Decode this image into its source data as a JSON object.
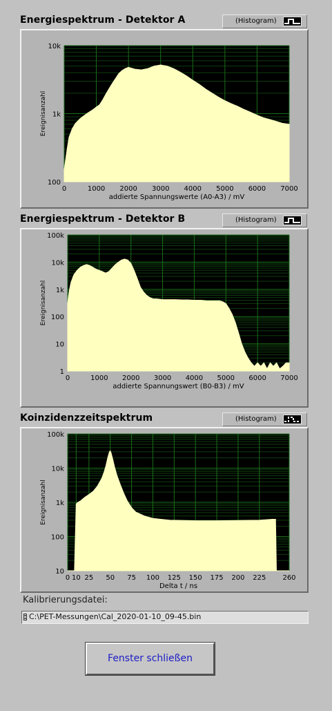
{
  "graphs": [
    {
      "title": "Energiespektrum - Detektor A",
      "legend_label": "(Histogram)",
      "legend_style": "steps-solid",
      "chart_data": {
        "type": "area",
        "xlabel": "addierte Spannungswerte (A0-A3) / mV",
        "ylabel": "Ereignisanzahl",
        "xlim": [
          0,
          7000
        ],
        "ylim": [
          100,
          10000
        ],
        "y_scale": "log",
        "xticks": [
          0,
          1000,
          2000,
          3000,
          4000,
          5000,
          6000,
          7000
        ],
        "xtick_labels": [
          "0",
          "1000",
          "2000",
          "3000",
          "4000",
          "5000",
          "6000",
          "7000"
        ],
        "yticks": [
          100,
          1000,
          10000
        ],
        "ytick_labels": [
          "100",
          "1k",
          "10k"
        ],
        "grid": true,
        "series": [
          {
            "color": "#ffffc0",
            "x": [
              0,
              50,
              100,
              150,
              250,
              350,
              500,
              700,
              900,
              1000,
              1100,
              1200,
              1300,
              1400,
              1500,
              1600,
              1700,
              1800,
              1900,
              2000,
              2200,
              2400,
              2600,
              2800,
              3000,
              3200,
              3400,
              3600,
              3800,
              4000,
              4200,
              4400,
              4600,
              4800,
              5000,
              5200,
              5400,
              5600,
              5800,
              6000,
              6200,
              6400,
              6600,
              6800,
              7000
            ],
            "y": [
              150,
              220,
              320,
              450,
              600,
              720,
              850,
              1000,
              1150,
              1250,
              1350,
              1600,
              1950,
              2350,
              2800,
              3300,
              3900,
              4300,
              4600,
              4800,
              4500,
              4400,
              4600,
              5000,
              5200,
              5000,
              4600,
              4100,
              3600,
              3100,
              2700,
              2300,
              2000,
              1750,
              1550,
              1400,
              1280,
              1150,
              1050,
              950,
              870,
              820,
              770,
              720,
              700
            ]
          }
        ]
      }
    },
    {
      "title": "Energiespektrum - Detektor B",
      "legend_label": "(Histogram)",
      "legend_style": "steps-solid",
      "chart_data": {
        "type": "area",
        "xlabel": "addierte Spannungswert (B0-B3) / mV",
        "ylabel": "Ereignisanzahl",
        "xlim": [
          0,
          7000
        ],
        "ylim": [
          1,
          100000
        ],
        "y_scale": "log",
        "xticks": [
          0,
          1000,
          2000,
          3000,
          4000,
          5000,
          6000,
          7000
        ],
        "xtick_labels": [
          "0",
          "1000",
          "2000",
          "3000",
          "4000",
          "5000",
          "6000",
          "7000"
        ],
        "yticks": [
          1,
          10,
          100,
          1000,
          10000,
          100000
        ],
        "ytick_labels": [
          "1",
          "10",
          "100",
          "1k",
          "10k",
          "100k"
        ],
        "grid": true,
        "series": [
          {
            "color": "#ffffc0",
            "x": [
              0,
              30,
              60,
              100,
              150,
              200,
              300,
              400,
              500,
              600,
              700,
              800,
              900,
              1000,
              1100,
              1200,
              1300,
              1400,
              1500,
              1600,
              1700,
              1800,
              1900,
              2000,
              2100,
              2200,
              2300,
              2400,
              2500,
              2600,
              2700,
              2800,
              3000,
              3200,
              3400,
              3600,
              3800,
              4000,
              4200,
              4400,
              4600,
              4800,
              4900,
              5000,
              5100,
              5200,
              5300,
              5400,
              5500,
              5600,
              5700,
              5800,
              5900,
              6000,
              6100,
              6200,
              6300,
              6400,
              6500,
              6600,
              6700,
              6800,
              6900,
              7000
            ],
            "y": [
              300,
              600,
              1000,
              1700,
              2500,
              3500,
              5000,
              6500,
              7500,
              8200,
              7500,
              6500,
              5500,
              5000,
              4500,
              4000,
              4500,
              6000,
              8000,
              10000,
              12000,
              13000,
              12000,
              9000,
              5000,
              2500,
              1200,
              800,
              600,
              500,
              450,
              450,
              420,
              420,
              420,
              410,
              410,
              400,
              400,
              380,
              380,
              380,
              350,
              300,
              200,
              120,
              60,
              25,
              10,
              5,
              3,
              2,
              1.5,
              2,
              1.5,
              2,
              1.2,
              2,
              1.5,
              2,
              1.2,
              1.5,
              2,
              2
            ]
          }
        ]
      }
    },
    {
      "title": "Koinzidenzzeitspektrum",
      "legend_label": "(Histogram)",
      "legend_style": "steps-dashed",
      "chart_data": {
        "type": "area",
        "xlabel": "Delta t / ns",
        "ylabel": "Ereignisanzahl",
        "xlim": [
          0,
          260
        ],
        "ylim": [
          10,
          100000
        ],
        "y_scale": "log",
        "xticks": [
          0,
          10,
          25,
          50,
          75,
          100,
          125,
          150,
          175,
          200,
          225,
          260
        ],
        "xtick_labels": [
          "0",
          "10",
          "25",
          "50",
          "75",
          "100",
          "125",
          "150",
          "175",
          "200",
          "225",
          "260"
        ],
        "yticks": [
          10,
          100,
          1000,
          10000,
          100000
        ],
        "ytick_labels": [
          "10",
          "100",
          "1k",
          "10k",
          "100k"
        ],
        "grid": true,
        "series": [
          {
            "color": "#ffffc0",
            "x": [
              0,
              1,
              3,
              5,
              6,
              8,
              10,
              12,
              15,
              20,
              25,
              30,
              35,
              40,
              43,
              45,
              47,
              49,
              50,
              51,
              53,
              55,
              58,
              62,
              66,
              70,
              75,
              80,
              90,
              100,
              120,
              150,
              175,
              200,
              225,
              240,
              244,
              245,
              246,
              260
            ],
            "y": [
              10,
              10,
              10,
              10,
              10,
              10,
              900,
              1000,
              1100,
              1400,
              1700,
              2100,
              3000,
              5000,
              8000,
              12000,
              20000,
              30000,
              32000,
              28000,
              18000,
              11000,
              6000,
              3200,
              1800,
              1100,
              700,
              520,
              400,
              340,
              300,
              290,
              290,
              295,
              300,
              320,
              320,
              10,
              10,
              10
            ]
          }
        ]
      }
    }
  ],
  "file": {
    "label": "Kalibrierungsdatei:",
    "path": "C:\\PET-Messungen\\Cal_2020-01-10_09-45.bin"
  },
  "close_button": {
    "label": "Fenster schließen"
  },
  "colors": {
    "plot_background": "#000000",
    "grid": "#1a6e1a",
    "fill": "#ffffc0",
    "panel": "#c1c1c1",
    "button_text": "#1c1cc8"
  }
}
